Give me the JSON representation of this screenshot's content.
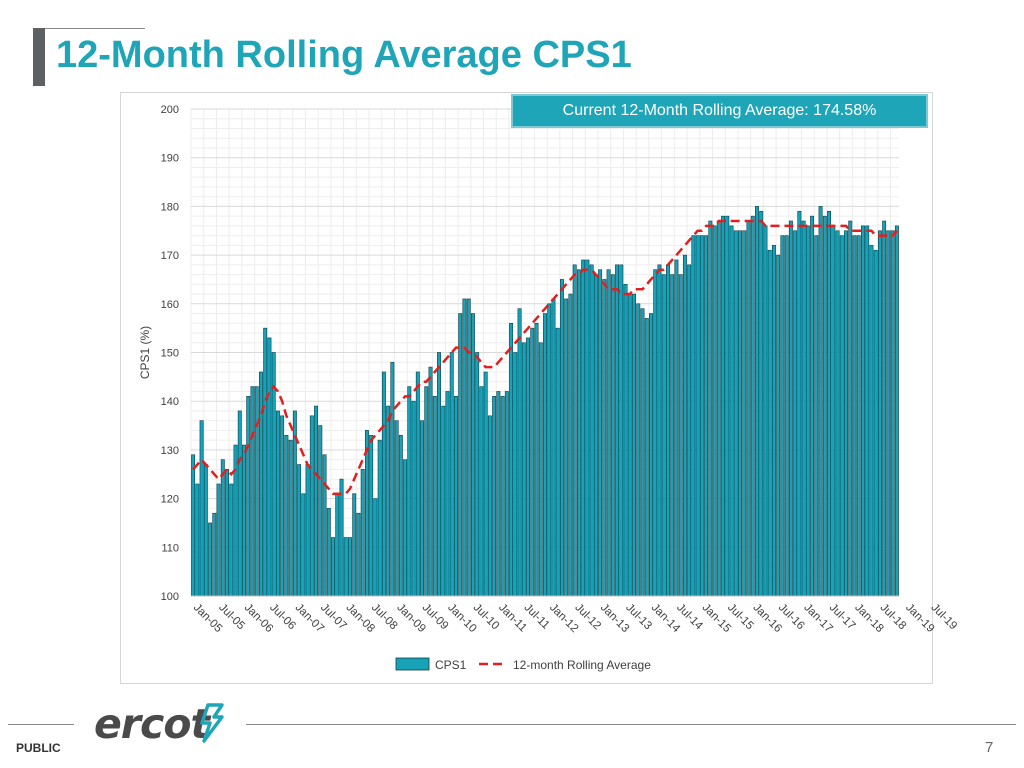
{
  "header": {
    "title": "12-Month Rolling Average CPS1"
  },
  "callout": {
    "text": "Current 12-Month Rolling Average: 174.58%"
  },
  "footer": {
    "classification": "PUBLIC",
    "page_number": "7",
    "logo_text": "ercot"
  },
  "colors": {
    "accent": "#1fa5b8",
    "bar_fill": "#17a2b8",
    "bar_stroke": "#0d3d47",
    "rolling_line": "#e02020",
    "title_gray": "#5f6062"
  },
  "chart_data": {
    "type": "bar",
    "ylabel": "CPS1 (%)",
    "ylim": [
      100,
      200
    ],
    "yticks": [
      100,
      110,
      120,
      130,
      140,
      150,
      160,
      170,
      180,
      190,
      200
    ],
    "grid": true,
    "legend_position": "bottom",
    "x_start": "2005-01",
    "xtick_labels": [
      "Jan-05",
      "Jul-05",
      "Jan-06",
      "Jul-06",
      "Jan-07",
      "Jul-07",
      "Jan-08",
      "Jul-08",
      "Jan-09",
      "Jul-09",
      "Jan-10",
      "Jul-10",
      "Jan-11",
      "Jul-11",
      "Jan-12",
      "Jul-12",
      "Jan-13",
      "Jul-13",
      "Jan-14",
      "Jul-14",
      "Jan-15",
      "Jul-15",
      "Jan-16",
      "Jul-16",
      "Jan-17",
      "Jul-17",
      "Jan-18",
      "Jul-18",
      "Jan-19",
      "Jul-19"
    ],
    "series": [
      {
        "name": "CPS1",
        "type": "bar",
        "values": [
          129,
          123,
          136,
          127,
          115,
          117,
          123,
          128,
          126,
          123,
          131,
          138,
          131,
          141,
          143,
          143,
          146,
          155,
          153,
          150,
          138,
          137,
          133,
          132,
          138,
          127,
          121,
          127,
          137,
          139,
          135,
          129,
          118,
          112,
          121,
          124,
          112,
          112,
          121,
          117,
          126,
          134,
          133,
          120,
          132,
          146,
          139,
          148,
          136,
          133,
          128,
          143,
          140,
          146,
          136,
          143,
          147,
          141,
          150,
          139,
          142,
          150,
          141,
          158,
          161,
          161,
          158,
          150,
          143,
          146,
          137,
          141,
          142,
          141,
          142,
          156,
          150,
          159,
          152,
          153,
          155,
          156,
          152,
          158,
          160,
          161,
          155,
          165,
          161,
          162,
          168,
          167,
          169,
          169,
          168,
          166,
          167,
          165,
          167,
          166,
          168,
          168,
          164,
          162,
          162,
          160,
          159,
          157,
          158,
          167,
          168,
          166,
          168,
          166,
          169,
          166,
          170,
          168,
          174,
          174,
          174,
          174,
          177,
          176,
          177,
          178,
          178,
          176,
          175,
          175,
          175,
          177,
          178,
          180,
          179,
          176,
          171,
          172,
          170,
          174,
          174,
          177,
          175,
          179,
          177,
          176,
          178,
          174,
          180,
          178,
          179,
          176,
          175,
          174,
          175,
          177,
          174,
          174,
          176,
          176,
          172,
          171,
          175,
          177,
          175,
          175,
          176
        ]
      },
      {
        "name": "12-month Rolling Average",
        "type": "line",
        "values": [
          126,
          127,
          128,
          127,
          126,
          125,
          124,
          125,
          126,
          125,
          126,
          128,
          129,
          131,
          133,
          135,
          137,
          140,
          142,
          143,
          142,
          140,
          137,
          135,
          133,
          131,
          129,
          127,
          126,
          125,
          124,
          123,
          122,
          121,
          121,
          121,
          121,
          122,
          124,
          126,
          128,
          130,
          132,
          133,
          134,
          135,
          136,
          138,
          139,
          140,
          141,
          141,
          142,
          143,
          144,
          144,
          145,
          146,
          147,
          148,
          149,
          150,
          151,
          151,
          151,
          150,
          150,
          149,
          148,
          147,
          147,
          147,
          148,
          149,
          150,
          151,
          152,
          153,
          154,
          155,
          156,
          157,
          158,
          159,
          160,
          161,
          162,
          163,
          164,
          165,
          166,
          166,
          167,
          167,
          167,
          166,
          165,
          164,
          163,
          163,
          163,
          162,
          162,
          162,
          163,
          163,
          163,
          164,
          165,
          166,
          167,
          167,
          168,
          169,
          170,
          171,
          172,
          173,
          174,
          175,
          175,
          176,
          176,
          176,
          177,
          177,
          177,
          177,
          177,
          177,
          177,
          177,
          177,
          177,
          177,
          176,
          176,
          176,
          176,
          176,
          176,
          176,
          176,
          176,
          176,
          176,
          176,
          176,
          176,
          176,
          176,
          176,
          176,
          176,
          176,
          175,
          175,
          175,
          175,
          175,
          175,
          174,
          174,
          174,
          174,
          174,
          175
        ]
      }
    ]
  }
}
